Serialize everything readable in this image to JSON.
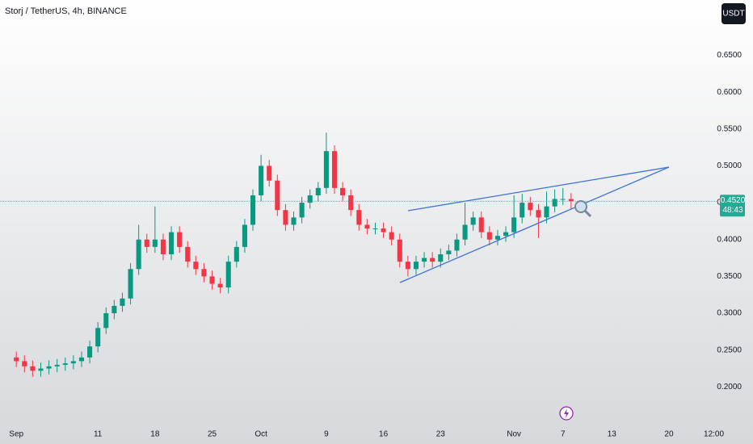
{
  "chart_data": {
    "type": "candlestick",
    "title": "Storj / TetherUS, 4h, BINANCE",
    "currency_button": "USDT",
    "x": [
      0,
      1,
      2,
      3,
      4,
      5,
      6,
      7,
      8,
      9,
      10,
      11,
      12,
      13,
      14,
      15,
      16,
      17,
      18,
      19,
      20,
      21,
      22,
      23,
      24,
      25,
      26,
      27,
      28,
      29,
      30,
      31,
      32,
      33,
      34,
      35,
      36,
      37,
      38,
      39,
      40,
      41,
      42,
      43,
      44,
      45,
      46,
      47,
      48,
      49,
      50,
      51,
      52,
      53,
      54,
      55,
      56,
      57,
      58,
      59,
      60,
      61,
      62,
      63,
      64,
      65,
      66,
      67,
      68
    ],
    "open": [
      0.24,
      0.235,
      0.228,
      0.222,
      0.225,
      0.228,
      0.23,
      0.232,
      0.235,
      0.24,
      0.255,
      0.28,
      0.3,
      0.31,
      0.32,
      0.36,
      0.4,
      0.39,
      0.4,
      0.38,
      0.41,
      0.39,
      0.37,
      0.36,
      0.35,
      0.34,
      0.335,
      0.37,
      0.39,
      0.42,
      0.46,
      0.5,
      0.48,
      0.44,
      0.42,
      0.43,
      0.45,
      0.46,
      0.47,
      0.52,
      0.47,
      0.46,
      0.44,
      0.42,
      0.415,
      0.415,
      0.41,
      0.4,
      0.37,
      0.36,
      0.37,
      0.375,
      0.37,
      0.38,
      0.385,
      0.4,
      0.42,
      0.43,
      0.41,
      0.4,
      0.405,
      0.41,
      0.43,
      0.45,
      0.44,
      0.43,
      0.445,
      0.455,
      0.455
    ],
    "high": [
      0.248,
      0.243,
      0.236,
      0.233,
      0.236,
      0.238,
      0.24,
      0.243,
      0.248,
      0.263,
      0.288,
      0.308,
      0.318,
      0.328,
      0.368,
      0.42,
      0.408,
      0.445,
      0.408,
      0.418,
      0.418,
      0.398,
      0.378,
      0.368,
      0.358,
      0.348,
      0.378,
      0.398,
      0.428,
      0.468,
      0.515,
      0.508,
      0.488,
      0.448,
      0.438,
      0.458,
      0.468,
      0.478,
      0.545,
      0.528,
      0.478,
      0.468,
      0.448,
      0.428,
      0.423,
      0.423,
      0.418,
      0.408,
      0.378,
      0.378,
      0.383,
      0.383,
      0.388,
      0.393,
      0.408,
      0.45,
      0.438,
      0.438,
      0.418,
      0.413,
      0.418,
      0.46,
      0.462,
      0.458,
      0.448,
      0.465,
      0.468,
      0.47,
      0.463
    ],
    "low": [
      0.227,
      0.22,
      0.214,
      0.214,
      0.217,
      0.22,
      0.222,
      0.224,
      0.227,
      0.232,
      0.247,
      0.272,
      0.292,
      0.302,
      0.312,
      0.352,
      0.382,
      0.382,
      0.372,
      0.372,
      0.382,
      0.362,
      0.352,
      0.342,
      0.332,
      0.327,
      0.327,
      0.362,
      0.382,
      0.412,
      0.452,
      0.472,
      0.432,
      0.412,
      0.412,
      0.422,
      0.442,
      0.452,
      0.462,
      0.462,
      0.452,
      0.432,
      0.412,
      0.407,
      0.407,
      0.402,
      0.392,
      0.362,
      0.35,
      0.352,
      0.362,
      0.362,
      0.362,
      0.372,
      0.377,
      0.392,
      0.412,
      0.402,
      0.392,
      0.392,
      0.397,
      0.402,
      0.422,
      0.432,
      0.402,
      0.422,
      0.437,
      0.447,
      0.442
    ],
    "close": [
      0.235,
      0.228,
      0.222,
      0.225,
      0.228,
      0.23,
      0.232,
      0.235,
      0.24,
      0.255,
      0.28,
      0.3,
      0.31,
      0.32,
      0.36,
      0.4,
      0.39,
      0.4,
      0.38,
      0.41,
      0.39,
      0.37,
      0.36,
      0.35,
      0.34,
      0.335,
      0.37,
      0.39,
      0.42,
      0.46,
      0.5,
      0.48,
      0.44,
      0.42,
      0.43,
      0.45,
      0.46,
      0.47,
      0.52,
      0.47,
      0.46,
      0.44,
      0.42,
      0.415,
      0.415,
      0.41,
      0.4,
      0.37,
      0.36,
      0.37,
      0.375,
      0.37,
      0.38,
      0.385,
      0.4,
      0.42,
      0.43,
      0.41,
      0.4,
      0.405,
      0.41,
      0.43,
      0.45,
      0.44,
      0.43,
      0.445,
      0.455,
      0.455,
      0.452
    ],
    "up_color": "#089981",
    "down_color": "#f23645",
    "xlim": [
      -2,
      90.3
    ],
    "xticks": [
      {
        "value": 0,
        "label": "Sep"
      },
      {
        "value": 10,
        "label": "11"
      },
      {
        "value": 17,
        "label": "18"
      },
      {
        "value": 24,
        "label": "25"
      },
      {
        "value": 30,
        "label": "Oct"
      },
      {
        "value": 38,
        "label": "9"
      },
      {
        "value": 45,
        "label": "16"
      },
      {
        "value": 52,
        "label": "23"
      },
      {
        "value": 61,
        "label": "Nov"
      },
      {
        "value": 67,
        "label": "7"
      },
      {
        "value": 73,
        "label": "13"
      },
      {
        "value": 80,
        "label": "20"
      },
      {
        "value": 85.5,
        "label": "12:00"
      }
    ],
    "ylim": [
      0.15,
      0.725
    ],
    "yticks": [
      {
        "value": 0.2,
        "label": "0.2000"
      },
      {
        "value": 0.25,
        "label": "0.2500"
      },
      {
        "value": 0.3,
        "label": "0.3000"
      },
      {
        "value": 0.35,
        "label": "0.3500"
      },
      {
        "value": 0.4,
        "label": "0.4000"
      },
      {
        "value": 0.45,
        "label": "0.4500"
      },
      {
        "value": 0.5,
        "label": "0.5000"
      },
      {
        "value": 0.55,
        "label": "0.5500"
      },
      {
        "value": 0.6,
        "label": "0.6000"
      },
      {
        "value": 0.65,
        "label": "0.6500"
      }
    ],
    "last_price": {
      "value": 0.452,
      "label": "0.4520"
    },
    "countdown": "48:43"
  }
}
